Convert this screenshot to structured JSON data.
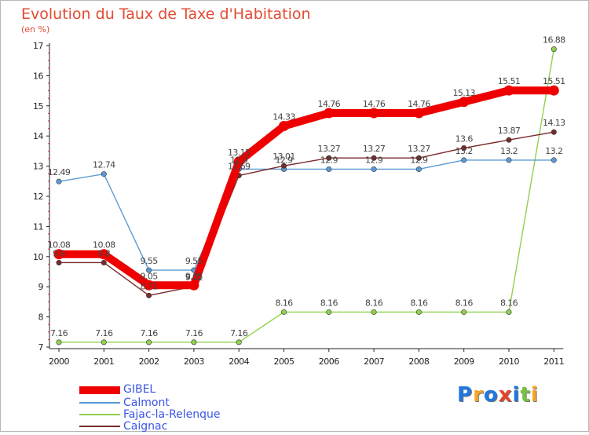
{
  "title": "Evolution du Taux de Taxe d'Habitation",
  "subtitle": "(en %)",
  "logo": {
    "text": "Proxiti",
    "letters": [
      {
        "ch": "P",
        "color": "#1f77e0"
      },
      {
        "ch": "r",
        "color": "#f5a623"
      },
      {
        "ch": "o",
        "color": "#1f77e0"
      },
      {
        "ch": "x",
        "color": "#e8432a"
      },
      {
        "ch": "i",
        "color": "#1f77e0"
      },
      {
        "ch": "t",
        "color": "#7ac143"
      },
      {
        "ch": "i",
        "color": "#f5a623"
      }
    ]
  },
  "chart_data": {
    "type": "line",
    "x": [
      "2000",
      "2001",
      "2002",
      "2003",
      "2004",
      "2005",
      "2006",
      "2007",
      "2008",
      "2009",
      "2010",
      "2011"
    ],
    "ylim": [
      7,
      17
    ],
    "yticks": [
      "7",
      "8",
      "9",
      "10",
      "11",
      "12",
      "13",
      "14",
      "15",
      "16",
      "17"
    ],
    "grid": false,
    "legend_position": "bottom-left",
    "series": [
      {
        "name": "GIBEL",
        "color": "#ee0000",
        "values": [
          10.08,
          10.08,
          9.05,
          9.05,
          13.15,
          14.33,
          14.76,
          14.76,
          14.76,
          15.13,
          15.51,
          15.51
        ],
        "labels": [
          "10.08",
          "10.08",
          "9.05",
          "9.05",
          "13.15",
          "14.33",
          "14.76",
          "14.76",
          "14.76",
          "15.13",
          "15.51",
          "15.51"
        ]
      },
      {
        "name": "Calmont",
        "color": "#5b9bd5",
        "values": [
          12.49,
          12.74,
          9.55,
          9.55,
          12.9,
          12.9,
          12.9,
          12.9,
          12.9,
          13.2,
          13.2,
          13.2
        ],
        "labels": [
          "12.49",
          "12.74",
          "9.55",
          "9.55",
          "12.9",
          "12.9",
          "12.9",
          "12.9",
          "12.9",
          "13.2",
          "13.2",
          "13.2"
        ]
      },
      {
        "name": "Fajac-la-Relenque",
        "color": "#8fd14f",
        "values": [
          7.16,
          7.16,
          7.16,
          7.16,
          7.16,
          8.16,
          8.16,
          8.16,
          8.16,
          8.16,
          8.16,
          16.88
        ],
        "labels": [
          "7.16",
          "7.16",
          "7.16",
          "7.16",
          "7.16",
          "8.16",
          "8.16",
          "8.16",
          "8.16",
          "8.16",
          "8.16",
          "16.88"
        ]
      },
      {
        "name": "Caignac",
        "color": "#7a2a2a",
        "values": [
          9.8,
          9.8,
          8.71,
          9.01,
          12.69,
          13.01,
          13.27,
          13.27,
          13.27,
          13.6,
          13.87,
          14.13
        ],
        "labels": [
          "9.8",
          "9.8",
          "8.71",
          "9.01",
          "12.69",
          "13.01",
          "13.27",
          "13.27",
          "13.27",
          "13.6",
          "13.87",
          "14.13"
        ]
      }
    ]
  }
}
